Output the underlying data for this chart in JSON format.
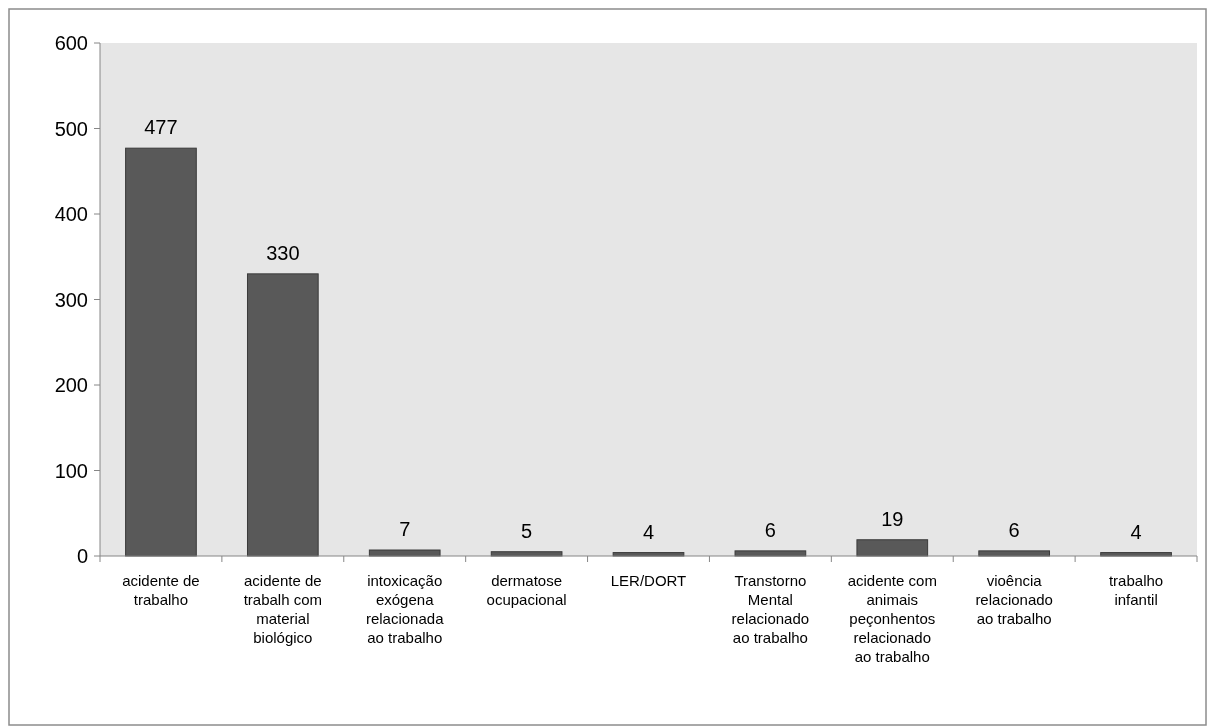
{
  "chart_data": {
    "type": "bar",
    "categories": [
      "acidente de trabalho",
      "acidente de trabalh com material biológico",
      "intoxicação exógena relacionada ao trabalho",
      "dermatose ocupacional",
      "LER/DORT",
      "Transtorno Mental relacionado ao trabalho",
      "acidente com animais peçonhentos relacionado ao trabalho",
      "vioência relacionado ao trabalho",
      "trabalho infantil"
    ],
    "values": [
      477,
      330,
      7,
      5,
      4,
      6,
      19,
      6,
      4
    ],
    "color": "#595959",
    "ylim": [
      0,
      600
    ],
    "yticks": [
      0,
      100,
      200,
      300,
      400,
      500,
      600
    ],
    "data_labels": true
  }
}
